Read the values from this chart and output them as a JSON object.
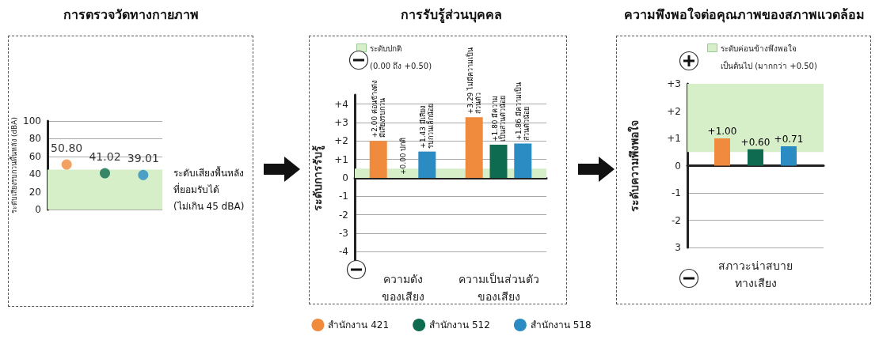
{
  "chart_data": [
    {
      "type": "scatter",
      "title": "การตรวจวัดทางกายภาพ",
      "ylabel": "ระดับเสียงรบกวนพื้นหลัง (dBA)",
      "categories": [
        null,
        null,
        null
      ],
      "series": [
        {
          "color": "#f08a3c",
          "values": [
            50.8,
            null,
            null
          ],
          "value_labels": [
            "50.80",
            null,
            null
          ]
        },
        {
          "color": "#0e6b4f",
          "values": [
            null,
            41.02,
            null
          ],
          "value_labels": [
            null,
            "41.02",
            null
          ]
        },
        {
          "color": "#2b8cc4",
          "values": [
            null,
            null,
            39.01
          ],
          "value_labels": [
            null,
            null,
            "39.01"
          ]
        }
      ],
      "ylim": [
        0,
        100
      ],
      "yticks": [
        0,
        20,
        40,
        60,
        80,
        100
      ],
      "grid": "y",
      "marker": "circle",
      "bands": [
        {
          "axis": "y",
          "from": 0,
          "to": 45,
          "label": "ระดับเสียงพื้นหลัง\nที่ยอมรับได้\n(ไม่เกิน 45 dBA)",
          "color": "#d6efc9"
        }
      ]
    },
    {
      "type": "bar",
      "title": "การรับรู้ส่วนบุคคล",
      "ylabel": "ระดับการรับรู้",
      "categories": [
        "ความดัง\nของเสียง",
        "ความเป็นส่วนตัว\nของเสียง"
      ],
      "series": [
        {
          "name": "สำนักงาน 421",
          "color": "#f08a3c",
          "values": [
            2.0,
            3.29
          ],
          "value_labels": [
            "+2.00 ค่อนข้างดัง\nมีเสียงรบกวน",
            "+3.29 ไม่มีความเป็น\nส่วนตัว"
          ]
        },
        {
          "name": "สำนักงาน 512",
          "color": "#0e6b4f",
          "values": [
            0.0,
            1.8
          ],
          "value_labels": [
            "+0.00 ปกติ",
            "+1.80 มีความ\nเป็นส่วนตัวน้อย"
          ]
        },
        {
          "name": "สำนักงาน 518",
          "color": "#2b8cc4",
          "values": [
            1.43,
            1.86
          ],
          "value_labels": [
            "+1.43 มีเสียง\nรบกวนเล็กน้อย",
            "+1.86 มีความเป็น\nส่วนตัวน้อย"
          ]
        }
      ],
      "ylim": [
        -4.5,
        4.5
      ],
      "yticks": [
        -4,
        -3,
        -2,
        -1,
        0,
        {
          "value": 1,
          "label": "+1"
        },
        {
          "value": 2,
          "label": "+2"
        },
        {
          "value": 3,
          "label": "+3"
        },
        {
          "value": 4,
          "label": "+4"
        }
      ],
      "grid": "y",
      "legend": "bottom",
      "bands": [
        {
          "axis": "y",
          "from": 0,
          "to": 0.5,
          "label": "ระดับปกติ\n(0.00 ถึง +0.50)",
          "color": "#d6efc9"
        }
      ]
    },
    {
      "type": "bar",
      "title": "ความพึงพอใจต่อคุณภาพของสภาพแวดล้อม",
      "ylabel": "ระดับความพึงพอใจ",
      "categories": [
        "สภาวะน่าสบาย\nทางเสียง"
      ],
      "series": [
        {
          "color": "#f08a3c",
          "values": [
            1.0
          ],
          "value_labels": [
            "+1.00"
          ]
        },
        {
          "color": "#0e6b4f",
          "values": [
            0.6
          ],
          "value_labels": [
            "+0.60"
          ]
        },
        {
          "color": "#2b8cc4",
          "values": [
            0.71
          ],
          "value_labels": [
            "+0.71"
          ]
        }
      ],
      "ylim": [
        -3,
        3
      ],
      "yticks": [
        {
          "value": -3,
          "label": "3"
        },
        -2,
        -1,
        0,
        {
          "value": 1,
          "label": "+1"
        },
        {
          "value": 2,
          "label": "+2"
        },
        {
          "value": 3,
          "label": "+3"
        }
      ],
      "grid": "y",
      "bands": [
        {
          "axis": "y",
          "from": 0.5,
          "to": 3,
          "label": "ระดับค่อนข้างพึงพอใจ\nเป็นต้นไป (มากกว่า +0.50)",
          "color": "#d6efc9"
        }
      ]
    }
  ]
}
